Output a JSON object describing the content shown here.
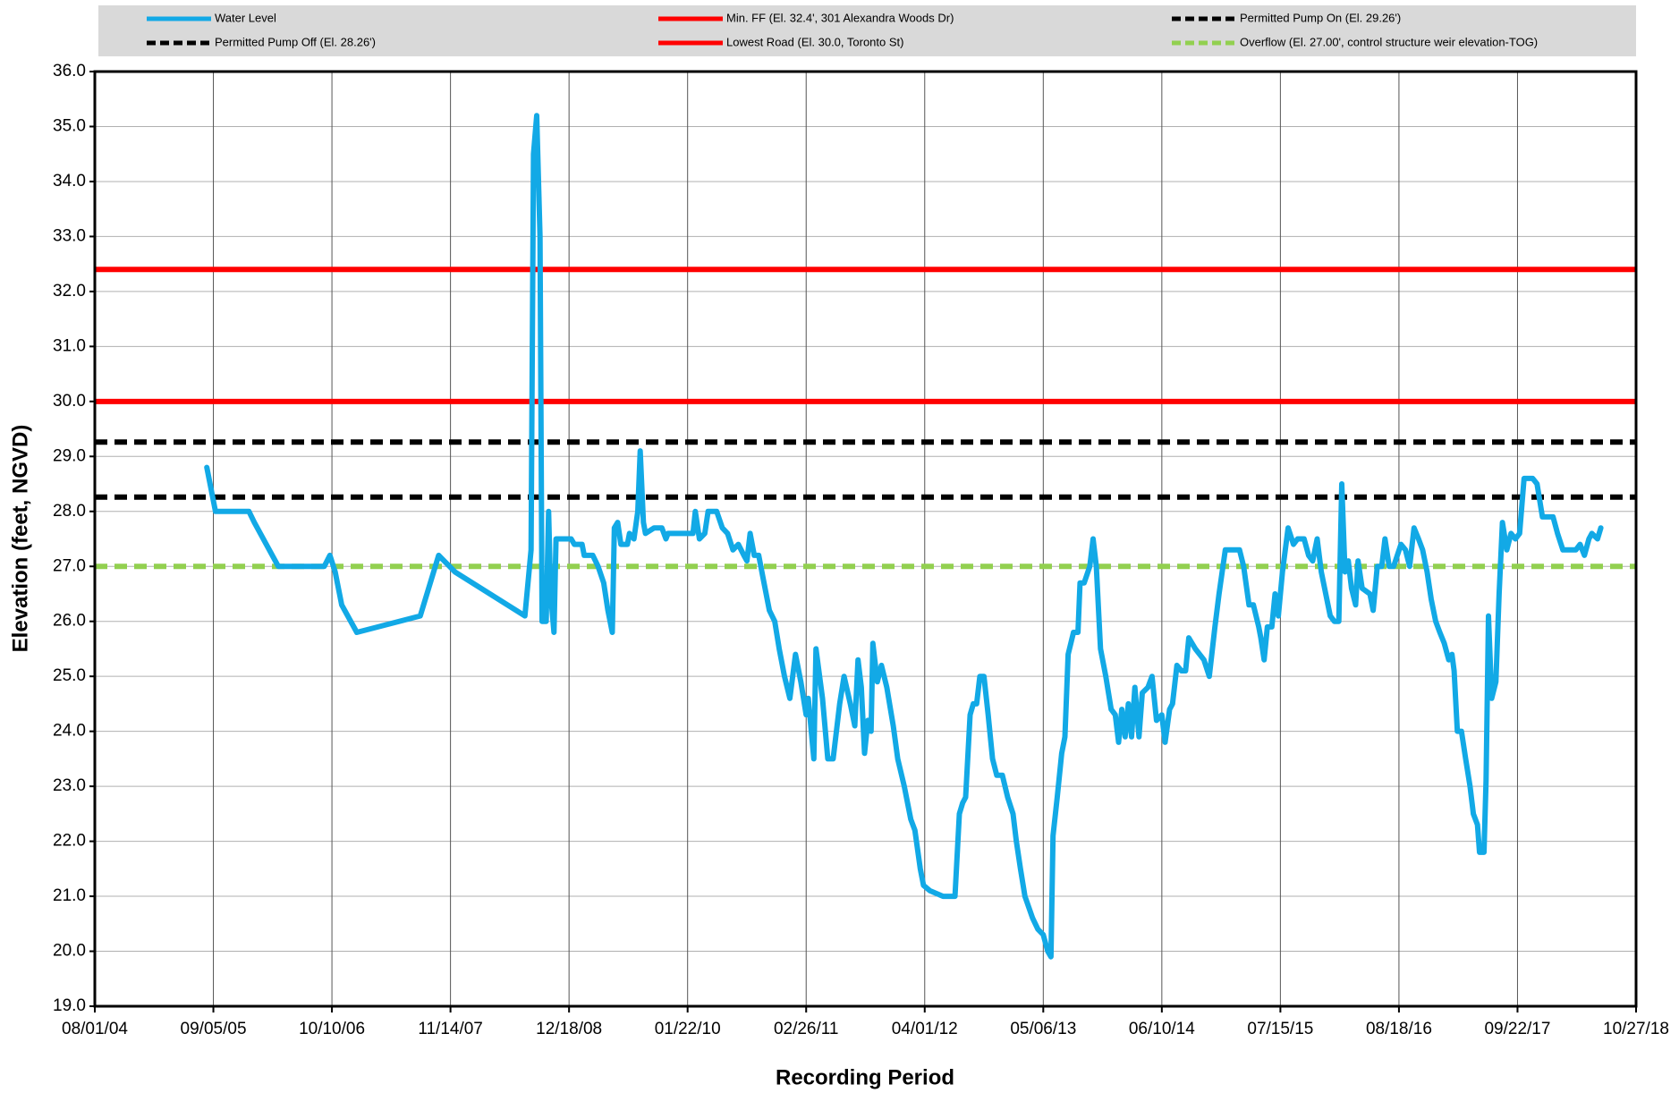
{
  "chart_data": {
    "type": "line",
    "xlabel": "Recording Period",
    "ylabel": "Elevation (feet, NGVD)",
    "legend_position": "top",
    "grid": true,
    "xlim": [
      "2004-08-01",
      "2018-10-27"
    ],
    "xticks": [
      {
        "value": "2004-08-01",
        "label": "08/01/04"
      },
      {
        "value": "2005-09-05",
        "label": "09/05/05"
      },
      {
        "value": "2006-10-10",
        "label": "10/10/06"
      },
      {
        "value": "2007-11-14",
        "label": "11/14/07"
      },
      {
        "value": "2008-12-18",
        "label": "12/18/08"
      },
      {
        "value": "2010-01-22",
        "label": "01/22/10"
      },
      {
        "value": "2011-02-26",
        "label": "02/26/11"
      },
      {
        "value": "2012-04-01",
        "label": "04/01/12"
      },
      {
        "value": "2013-05-06",
        "label": "05/06/13"
      },
      {
        "value": "2014-06-10",
        "label": "06/10/14"
      },
      {
        "value": "2015-07-15",
        "label": "07/15/15"
      },
      {
        "value": "2016-08-18",
        "label": "08/18/16"
      },
      {
        "value": "2017-09-22",
        "label": "09/22/17"
      },
      {
        "value": "2018-10-27",
        "label": "10/27/18"
      }
    ],
    "ylim": [
      19,
      36
    ],
    "yticks": [
      {
        "value": 19,
        "label": "19.0"
      },
      {
        "value": 20,
        "label": "20.0"
      },
      {
        "value": 21,
        "label": "21.0"
      },
      {
        "value": 22,
        "label": "22.0"
      },
      {
        "value": 23,
        "label": "23.0"
      },
      {
        "value": 24,
        "label": "24.0"
      },
      {
        "value": 25,
        "label": "25.0"
      },
      {
        "value": 26,
        "label": "26.0"
      },
      {
        "value": 27,
        "label": "27.0"
      },
      {
        "value": 28,
        "label": "28.0"
      },
      {
        "value": 29,
        "label": "29.0"
      },
      {
        "value": 30,
        "label": "30.0"
      },
      {
        "value": 31,
        "label": "31.0"
      },
      {
        "value": 32,
        "label": "32.0"
      },
      {
        "value": 33,
        "label": "33.0"
      },
      {
        "value": 34,
        "label": "34.0"
      },
      {
        "value": 35,
        "label": "35.0"
      },
      {
        "value": 36,
        "label": "36.0"
      }
    ],
    "x": [
      "2005-08-14",
      "2005-09-12",
      "2006-01-03",
      "2006-01-21",
      "2006-04-12",
      "2006-09-14",
      "2006-10-03",
      "2006-10-21",
      "2006-11-12",
      "2007-01-02",
      "2007-08-04",
      "2007-10-05",
      "2007-11-29",
      "2008-07-22",
      "2008-08-12",
      "2008-08-20",
      "2008-08-31",
      "2008-09-11",
      "2008-09-18",
      "2008-10-02",
      "2008-10-10",
      "2008-10-17",
      "2008-10-28",
      "2008-11-04",
      "2008-12-25",
      "2009-01-05",
      "2009-01-31",
      "2009-02-07",
      "2009-03-08",
      "2009-03-26",
      "2009-04-14",
      "2009-04-28",
      "2009-05-13",
      "2009-05-20",
      "2009-05-31",
      "2009-06-11",
      "2009-07-03",
      "2009-07-10",
      "2009-07-25",
      "2009-08-07",
      "2009-08-15",
      "2009-08-26",
      "2009-09-02",
      "2009-10-01",
      "2009-10-27",
      "2009-11-10",
      "2009-11-17",
      "2010-02-09",
      "2010-02-17",
      "2010-03-03",
      "2010-03-21",
      "2010-04-01",
      "2010-04-30",
      "2010-05-19",
      "2010-06-06",
      "2010-06-24",
      "2010-07-12",
      "2010-07-31",
      "2010-08-10",
      "2010-08-21",
      "2010-09-04",
      "2010-09-19",
      "2010-10-03",
      "2010-10-25",
      "2010-11-12",
      "2010-11-27",
      "2010-12-15",
      "2011-01-02",
      "2011-01-21",
      "2011-02-08",
      "2011-02-26",
      "2011-03-05",
      "2011-03-24",
      "2011-03-31",
      "2011-04-22",
      "2011-05-10",
      "2011-05-28",
      "2011-06-19",
      "2011-07-04",
      "2011-07-25",
      "2011-08-09",
      "2011-08-20",
      "2011-08-31",
      "2011-09-11",
      "2011-09-22",
      "2011-10-03",
      "2011-10-09",
      "2011-10-24",
      "2011-11-07",
      "2011-11-25",
      "2011-12-17",
      "2012-01-01",
      "2012-01-23",
      "2012-02-14",
      "2012-02-28",
      "2012-03-17",
      "2012-03-28",
      "2012-04-19",
      "2012-06-02",
      "2012-07-12",
      "2012-07-16",
      "2012-07-27",
      "2012-08-07",
      "2012-08-17",
      "2012-09-01",
      "2012-09-12",
      "2012-09-23",
      "2012-10-04",
      "2012-10-18",
      "2012-11-01",
      "2012-11-16",
      "2012-11-30",
      "2012-12-19",
      "2013-01-06",
      "2013-01-24",
      "2013-02-04",
      "2013-02-18",
      "2013-03-05",
      "2013-03-31",
      "2013-04-18",
      "2013-05-06",
      "2013-05-21",
      "2013-06-01",
      "2013-06-08",
      "2013-06-22",
      "2013-07-07",
      "2013-07-18",
      "2013-07-29",
      "2013-08-16",
      "2013-08-31",
      "2013-09-07",
      "2013-09-21",
      "2013-10-10",
      "2013-10-21",
      "2013-11-01",
      "2013-11-15",
      "2013-12-03",
      "2013-12-21",
      "2014-01-04",
      "2014-01-15",
      "2014-01-26",
      "2014-02-06",
      "2014-02-17",
      "2014-02-28",
      "2014-03-11",
      "2014-03-25",
      "2014-04-05",
      "2014-04-24",
      "2014-05-08",
      "2014-05-23",
      "2014-06-10",
      "2014-06-21",
      "2014-07-06",
      "2014-07-16",
      "2014-07-31",
      "2014-08-15",
      "2014-08-29",
      "2014-09-09",
      "2014-10-01",
      "2014-10-30",
      "2014-11-17",
      "2014-12-06",
      "2014-12-20",
      "2015-01-10",
      "2015-02-27",
      "2015-03-13",
      "2015-03-31",
      "2015-04-15",
      "2015-05-03",
      "2015-05-10",
      "2015-05-21",
      "2015-06-01",
      "2015-06-16",
      "2015-06-27",
      "2015-07-08",
      "2015-07-22",
      "2015-08-10",
      "2015-08-28",
      "2015-09-11",
      "2015-10-03",
      "2015-10-18",
      "2015-11-01",
      "2015-11-16",
      "2015-11-30",
      "2015-12-15",
      "2015-12-30",
      "2016-01-13",
      "2016-01-28",
      "2016-02-07",
      "2016-02-18",
      "2016-02-29",
      "2016-03-11",
      "2016-03-25",
      "2016-04-02",
      "2016-04-16",
      "2016-05-12",
      "2016-05-23",
      "2016-06-06",
      "2016-06-21",
      "2016-07-02",
      "2016-07-16",
      "2016-07-31",
      "2016-08-25",
      "2016-09-09",
      "2016-09-23",
      "2016-10-08",
      "2016-10-23",
      "2016-11-06",
      "2016-11-21",
      "2016-12-05",
      "2016-12-20",
      "2017-01-03",
      "2017-01-18",
      "2017-02-02",
      "2017-02-13",
      "2017-02-20",
      "2017-03-03",
      "2017-03-17",
      "2017-03-31",
      "2017-04-15",
      "2017-04-26",
      "2017-05-10",
      "2017-05-17",
      "2017-06-01",
      "2017-06-08",
      "2017-06-16",
      "2017-06-27",
      "2017-07-11",
      "2017-07-22",
      "2017-08-02",
      "2017-08-17",
      "2017-08-31",
      "2017-09-15",
      "2017-09-29",
      "2017-10-14",
      "2017-10-28",
      "2017-11-12",
      "2017-11-27",
      "2017-12-15",
      "2018-01-20",
      "2018-02-04",
      "2018-02-22",
      "2018-04-07",
      "2018-04-21",
      "2018-05-06",
      "2018-05-21",
      "2018-05-31",
      "2018-06-19",
      "2018-06-30"
    ],
    "series": [
      {
        "name": "Water Level",
        "color": "#12a9e6",
        "values": [
          28.8,
          28.0,
          28.0,
          27.8,
          27.0,
          27.0,
          27.2,
          26.9,
          26.3,
          25.8,
          26.1,
          27.2,
          26.9,
          26.1,
          27.3,
          34.5,
          35.2,
          33.0,
          26.0,
          26.0,
          28.0,
          26.5,
          25.8,
          27.5,
          27.5,
          27.4,
          27.4,
          27.2,
          27.2,
          27.0,
          26.7,
          26.2,
          25.8,
          27.7,
          27.8,
          27.4,
          27.4,
          27.6,
          27.5,
          28.0,
          29.1,
          27.8,
          27.6,
          27.7,
          27.7,
          27.5,
          27.6,
          27.6,
          28.0,
          27.5,
          27.6,
          28.0,
          28.0,
          27.7,
          27.6,
          27.3,
          27.4,
          27.2,
          27.1,
          27.6,
          27.2,
          27.2,
          26.8,
          26.2,
          26.0,
          25.5,
          25.0,
          24.6,
          25.4,
          24.9,
          24.3,
          24.6,
          23.5,
          25.5,
          24.6,
          23.5,
          23.5,
          24.5,
          25.0,
          24.5,
          24.1,
          25.3,
          24.8,
          23.6,
          24.2,
          24.0,
          25.6,
          24.9,
          25.2,
          24.8,
          24.1,
          23.5,
          23.0,
          22.4,
          22.2,
          21.5,
          21.2,
          21.1,
          21.0,
          21.0,
          21.4,
          22.5,
          22.7,
          22.8,
          24.3,
          24.5,
          24.5,
          25.0,
          25.0,
          24.3,
          23.5,
          23.2,
          23.2,
          22.8,
          22.5,
          22.0,
          21.5,
          21.0,
          20.6,
          20.4,
          20.3,
          20.0,
          19.9,
          22.1,
          22.8,
          23.6,
          23.9,
          25.4,
          25.8,
          25.8,
          26.7,
          26.7,
          27.0,
          27.5,
          27.0,
          25.5,
          25.0,
          24.4,
          24.3,
          23.8,
          24.4,
          23.9,
          24.5,
          23.9,
          24.8,
          23.9,
          24.7,
          24.8,
          25.0,
          24.2,
          24.3,
          23.8,
          24.4,
          24.5,
          25.2,
          25.1,
          25.1,
          25.7,
          25.5,
          25.3,
          25.0,
          25.9,
          26.5,
          27.3,
          27.3,
          27.0,
          26.3,
          26.3,
          25.9,
          25.7,
          25.3,
          25.9,
          25.9,
          26.5,
          26.1,
          26.9,
          27.7,
          27.4,
          27.5,
          27.5,
          27.2,
          27.1,
          27.5,
          26.9,
          26.5,
          26.1,
          26.0,
          26.0,
          28.5,
          26.9,
          27.1,
          26.6,
          26.3,
          27.1,
          26.6,
          26.5,
          26.2,
          27.0,
          27.0,
          27.5,
          27.0,
          27.0,
          27.4,
          27.3,
          27.0,
          27.7,
          27.5,
          27.3,
          26.9,
          26.4,
          26.0,
          25.8,
          25.6,
          25.3,
          25.4,
          25.1,
          24.0,
          24.0,
          23.5,
          23.0,
          22.5,
          22.3,
          21.8,
          21.8,
          23.1,
          26.1,
          24.6,
          24.9,
          26.5,
          27.8,
          27.3,
          27.6,
          27.5,
          27.6,
          28.6,
          28.6,
          28.6,
          28.5,
          27.9,
          27.9,
          27.6,
          27.3,
          27.3,
          27.4,
          27.2,
          27.5,
          27.6,
          27.5,
          27.7
        ]
      }
    ],
    "reference_lines": [
      {
        "name": "Min. FF (El. 32.4', 301 Alexandra Woods Dr)",
        "value": 32.4,
        "color": "#ff0000",
        "dashed": false
      },
      {
        "name": "Permitted Pump On (El. 29.26')",
        "value": 29.26,
        "color": "#000000",
        "dashed": true
      },
      {
        "name": "Permitted Pump Off (El. 28.26')",
        "value": 28.26,
        "color": "#000000",
        "dashed": true
      },
      {
        "name": "Lowest Road (El. 30.0, Toronto St)",
        "value": 30.0,
        "color": "#ff0000",
        "dashed": false
      },
      {
        "name": "Overflow (El. 27.00', control structure weir elevation-TOG)",
        "value": 27.0,
        "color": "#92d050",
        "dashed": true
      }
    ]
  }
}
